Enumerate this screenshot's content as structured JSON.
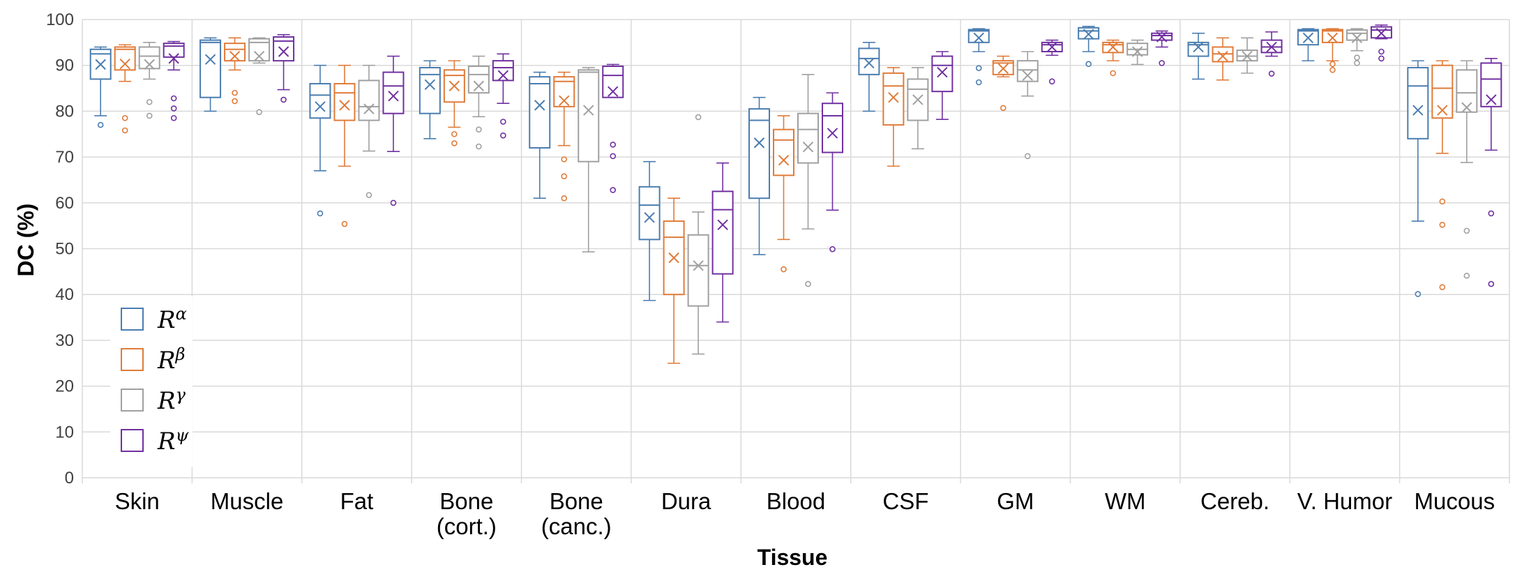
{
  "chart_data": {
    "type": "boxplot",
    "title": "",
    "xlabel": "Tissue",
    "ylabel": "DC (%)",
    "ylim": [
      0,
      100
    ],
    "yticks": [
      0,
      10,
      20,
      30,
      40,
      50,
      60,
      70,
      80,
      90,
      100
    ],
    "grid": true,
    "legend_position": "bottom-left inside",
    "categories": [
      [
        "Skin"
      ],
      [
        "Muscle"
      ],
      [
        "Fat"
      ],
      [
        "Bone",
        "(cort.)"
      ],
      [
        "Bone",
        "(canc.)"
      ],
      [
        "Dura"
      ],
      [
        "Blood"
      ],
      [
        "CSF"
      ],
      [
        "GM"
      ],
      [
        "WM"
      ],
      [
        "Cereb."
      ],
      [
        "V. Humor"
      ],
      [
        "Mucous"
      ]
    ],
    "series": [
      {
        "name": "R",
        "sup": "α",
        "color": "#4A7DB0",
        "boxes": [
          {
            "min": 79,
            "q1": 87,
            "median": 92.5,
            "q3": 93.5,
            "max": 94,
            "mean": 90.2,
            "outliers": [
              77
            ]
          },
          {
            "min": 80,
            "q1": 83,
            "median": 95,
            "q3": 95.5,
            "max": 96,
            "mean": 91.3,
            "outliers": []
          },
          {
            "min": 67,
            "q1": 78.5,
            "median": 83.5,
            "q3": 86,
            "max": 90,
            "mean": 81,
            "outliers": [
              57.7
            ]
          },
          {
            "min": 74,
            "q1": 79.5,
            "median": 88,
            "q3": 89.5,
            "max": 91,
            "mean": 85.8,
            "outliers": []
          },
          {
            "min": 61,
            "q1": 72,
            "median": 86,
            "q3": 87.5,
            "max": 88.5,
            "mean": 81.3,
            "outliers": []
          },
          {
            "min": 38.7,
            "q1": 52,
            "median": 59.5,
            "q3": 63.5,
            "max": 69,
            "mean": 56.8,
            "outliers": []
          },
          {
            "min": 48.7,
            "q1": 61,
            "median": 78,
            "q3": 80.5,
            "max": 83,
            "mean": 73.1,
            "outliers": []
          },
          {
            "min": 80,
            "q1": 88,
            "median": 91.5,
            "q3": 93.7,
            "max": 95,
            "mean": 90.5,
            "outliers": []
          },
          {
            "min": 93,
            "q1": 95,
            "median": 97.5,
            "q3": 97.8,
            "max": 98,
            "mean": 96,
            "outliers": [
              89.4,
              86.3
            ]
          },
          {
            "min": 93,
            "q1": 95.8,
            "median": 97.5,
            "q3": 98.2,
            "max": 98.5,
            "mean": 96.8,
            "outliers": [
              90.3
            ]
          },
          {
            "min": 87,
            "q1": 92,
            "median": 94.5,
            "q3": 95,
            "max": 97,
            "mean": 94,
            "outliers": []
          },
          {
            "min": 91,
            "q1": 94.5,
            "median": 97.5,
            "q3": 97.8,
            "max": 98,
            "mean": 96,
            "outliers": []
          },
          {
            "min": 56,
            "q1": 74,
            "median": 85.5,
            "q3": 89.5,
            "max": 91,
            "mean": 80.2,
            "outliers": [
              40.1
            ]
          }
        ]
      },
      {
        "name": "R",
        "sup": "β",
        "color": "#E07B39",
        "boxes": [
          {
            "min": 86.5,
            "q1": 89,
            "median": 93.5,
            "q3": 94,
            "max": 94.5,
            "mean": 90.3,
            "outliers": [
              78.5,
              75.8
            ]
          },
          {
            "min": 89,
            "q1": 91,
            "median": 93.5,
            "q3": 94.8,
            "max": 96,
            "mean": 92,
            "outliers": [
              84,
              82.2
            ]
          },
          {
            "min": 68,
            "q1": 78,
            "median": 84,
            "q3": 86,
            "max": 90,
            "mean": 81.3,
            "outliers": [
              55.4
            ]
          },
          {
            "min": 76.5,
            "q1": 82,
            "median": 87.8,
            "q3": 89,
            "max": 91,
            "mean": 85.5,
            "outliers": [
              75,
              73
            ]
          },
          {
            "min": 72.5,
            "q1": 81,
            "median": 86.5,
            "q3": 87.5,
            "max": 88.5,
            "mean": 82.3,
            "outliers": [
              69.5,
              65.8,
              61
            ]
          },
          {
            "min": 25,
            "q1": 40,
            "median": 52.5,
            "q3": 56,
            "max": 61,
            "mean": 48,
            "outliers": []
          },
          {
            "min": 52,
            "q1": 66,
            "median": 73.7,
            "q3": 76,
            "max": 79,
            "mean": 69.3,
            "outliers": [
              45.5
            ]
          },
          {
            "min": 68,
            "q1": 77,
            "median": 85.5,
            "q3": 88.3,
            "max": 89.5,
            "mean": 83,
            "outliers": []
          },
          {
            "min": 87.5,
            "q1": 88,
            "median": 90.5,
            "q3": 91,
            "max": 92,
            "mean": 89.3,
            "outliers": [
              80.7
            ]
          },
          {
            "min": 91,
            "q1": 92.8,
            "median": 94.5,
            "q3": 95,
            "max": 95.5,
            "mean": 94,
            "outliers": [
              88.3
            ]
          },
          {
            "min": 86.8,
            "q1": 90.8,
            "median": 92.5,
            "q3": 94,
            "max": 96,
            "mean": 92,
            "outliers": []
          },
          {
            "min": 91,
            "q1": 95,
            "median": 97.5,
            "q3": 97.8,
            "max": 98,
            "mean": 96,
            "outliers": [
              90.3,
              89
            ]
          },
          {
            "min": 70.8,
            "q1": 78.5,
            "median": 85,
            "q3": 90,
            "max": 91,
            "mean": 80.2,
            "outliers": [
              60.3,
              55.2,
              41.6
            ]
          }
        ]
      },
      {
        "name": "R",
        "sup": "γ",
        "color": "#A0A0A0",
        "boxes": [
          {
            "min": 87,
            "q1": 89.3,
            "median": 92,
            "q3": 94,
            "max": 95,
            "mean": 90.2,
            "outliers": [
              82,
              79
            ]
          },
          {
            "min": 90.5,
            "q1": 91,
            "median": 95,
            "q3": 95.8,
            "max": 96,
            "mean": 92,
            "outliers": [
              79.8
            ]
          },
          {
            "min": 71.3,
            "q1": 78,
            "median": 81,
            "q3": 86.7,
            "max": 90,
            "mean": 80.5,
            "outliers": [
              61.7
            ]
          },
          {
            "min": 78.8,
            "q1": 84,
            "median": 88,
            "q3": 89.8,
            "max": 92,
            "mean": 85.5,
            "outliers": [
              76,
              72.3
            ]
          },
          {
            "min": 49.3,
            "q1": 69,
            "median": 88.5,
            "q3": 89,
            "max": 89.5,
            "mean": 80.2,
            "outliers": []
          },
          {
            "min": 27,
            "q1": 37.5,
            "median": 46.3,
            "q3": 53,
            "max": 58,
            "mean": 46.3,
            "outliers": [
              78.7
            ]
          },
          {
            "min": 54.3,
            "q1": 68.7,
            "median": 76,
            "q3": 79.5,
            "max": 88,
            "mean": 72.2,
            "outliers": [
              42.3
            ]
          },
          {
            "min": 71.8,
            "q1": 78,
            "median": 84.8,
            "q3": 87,
            "max": 89.5,
            "mean": 82.5,
            "outliers": []
          },
          {
            "min": 83.3,
            "q1": 86.5,
            "median": 89,
            "q3": 91,
            "max": 93,
            "mean": 87.8,
            "outliers": [
              70.2
            ]
          },
          {
            "min": 90.2,
            "q1": 92.3,
            "median": 93.5,
            "q3": 94.8,
            "max": 95.5,
            "mean": 93,
            "outliers": []
          },
          {
            "min": 88.3,
            "q1": 91,
            "median": 92,
            "q3": 93.3,
            "max": 96,
            "mean": 92,
            "outliers": []
          },
          {
            "min": 93.2,
            "q1": 95.5,
            "median": 97,
            "q3": 97.7,
            "max": 98,
            "mean": 96,
            "outliers": [
              91.7,
              90.5
            ]
          },
          {
            "min": 68.8,
            "q1": 79.8,
            "median": 84,
            "q3": 89,
            "max": 91,
            "mean": 80.8,
            "outliers": [
              53.9,
              44.1
            ]
          }
        ]
      },
      {
        "name": "R",
        "sup": "ψ",
        "color": "#7030A0",
        "boxes": [
          {
            "min": 89,
            "q1": 91.8,
            "median": 94.2,
            "q3": 94.8,
            "max": 95.2,
            "mean": 91.5,
            "outliers": [
              82.8,
              80.6,
              78.5
            ]
          },
          {
            "min": 84.7,
            "q1": 91,
            "median": 95.3,
            "q3": 96.2,
            "max": 96.7,
            "mean": 93,
            "outliers": [
              82.5
            ]
          },
          {
            "min": 71.2,
            "q1": 79.5,
            "median": 85.5,
            "q3": 88.5,
            "max": 92,
            "mean": 83.3,
            "outliers": [
              60
            ]
          },
          {
            "min": 81.7,
            "q1": 86.7,
            "median": 89.5,
            "q3": 91,
            "max": 92.5,
            "mean": 87.8,
            "outliers": [
              77.7,
              74.7
            ]
          },
          {
            "min": 83,
            "q1": 83,
            "median": 87.8,
            "q3": 89.8,
            "max": 90.2,
            "mean": 84.3,
            "outliers": [
              72.7,
              70.2,
              62.8
            ]
          },
          {
            "min": 34,
            "q1": 44.5,
            "median": 58.5,
            "q3": 62.5,
            "max": 68.7,
            "mean": 55.2,
            "outliers": []
          },
          {
            "min": 58.4,
            "q1": 71,
            "median": 79,
            "q3": 81.7,
            "max": 84,
            "mean": 75.2,
            "outliers": [
              49.9
            ]
          },
          {
            "min": 78.2,
            "q1": 84.3,
            "median": 90,
            "q3": 92,
            "max": 93,
            "mean": 88.5,
            "outliers": []
          },
          {
            "min": 92.2,
            "q1": 93,
            "median": 94.5,
            "q3": 95,
            "max": 95.5,
            "mean": 94,
            "outliers": [
              86.5
            ]
          },
          {
            "min": 94,
            "q1": 95.5,
            "median": 96.5,
            "q3": 97,
            "max": 97.5,
            "mean": 96.2,
            "outliers": [
              90.5
            ]
          },
          {
            "min": 92,
            "q1": 92.8,
            "median": 94,
            "q3": 95.5,
            "max": 97.3,
            "mean": 94,
            "outliers": [
              88.2
            ]
          },
          {
            "min": 95.8,
            "q1": 96,
            "median": 97.7,
            "q3": 98.4,
            "max": 98.8,
            "mean": 97,
            "outliers": [
              93,
              91.5
            ]
          },
          {
            "min": 71.5,
            "q1": 81,
            "median": 87,
            "q3": 90.5,
            "max": 91.5,
            "mean": 82.5,
            "outliers": [
              57.7,
              42.3
            ]
          }
        ]
      }
    ]
  }
}
